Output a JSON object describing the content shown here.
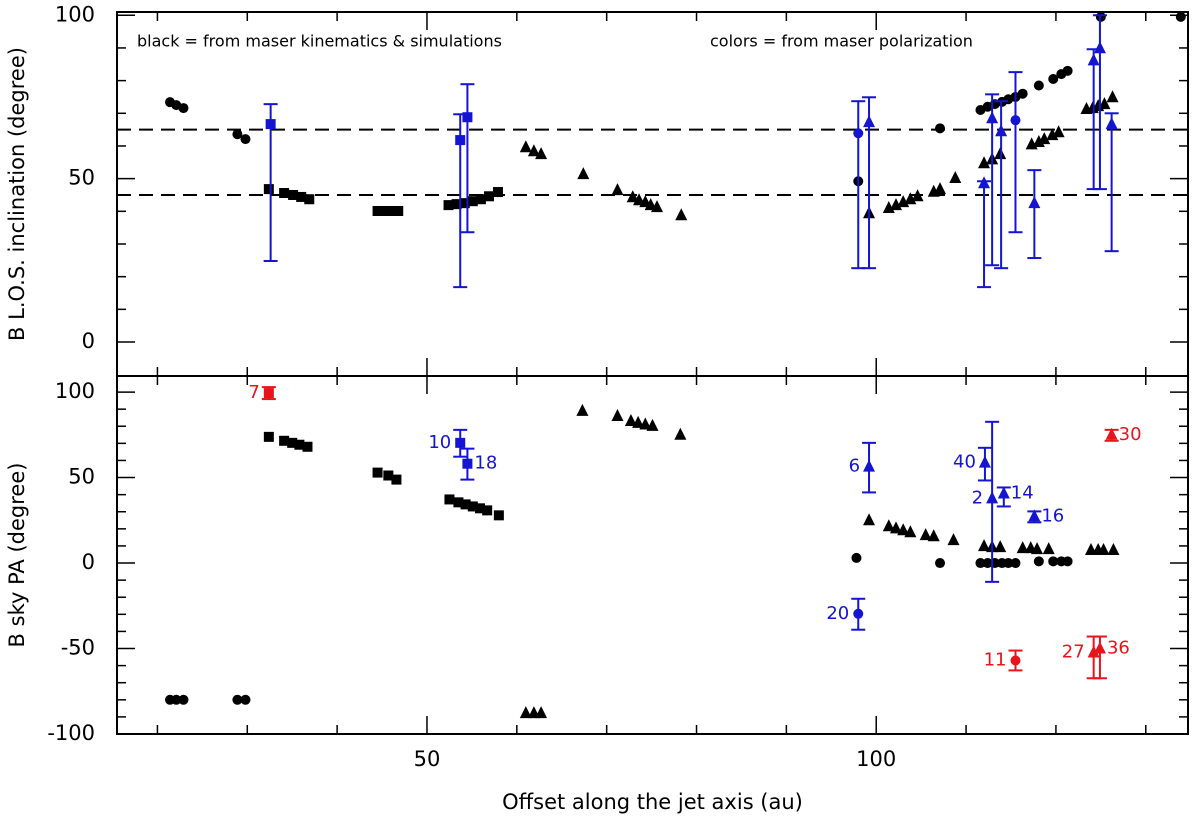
{
  "chart_data": [
    {
      "type": "scatter",
      "ylabel": "B L.O.S. inclination (degree)",
      "annotations": [
        "black = from maser kinematics & simulations",
        "colors = from maser polarization"
      ],
      "xlim": [
        15.5,
        134.7
      ],
      "xticks": [
        50,
        100
      ],
      "xminorticks": [
        20,
        30,
        40,
        60,
        70,
        80,
        90,
        110,
        120,
        130
      ],
      "ylim": [
        -10.4,
        101
      ],
      "yticks": [
        0,
        50,
        100
      ],
      "yminorticks": [
        10,
        20,
        30,
        40,
        60,
        70,
        80,
        90
      ],
      "hlines": [
        45,
        65
      ],
      "series": [
        {
          "marker": "circle",
          "color": "#000000",
          "x": [
            21.4,
            22.1,
            22.9,
            28.9,
            29.8,
            98.0,
            107.1,
            111.6,
            112.4,
            113.2,
            114.0,
            114.7,
            115.5,
            116.3,
            118.1,
            119.7,
            120.6,
            121.3,
            125.0,
            133.9
          ],
          "values": [
            73.4,
            72.5,
            71.6,
            63.6,
            62.1,
            49.2,
            65.4,
            71,
            72,
            72.8,
            73.5,
            74.3,
            75,
            76,
            78.5,
            80.5,
            82,
            83,
            99.5,
            99.5
          ]
        },
        {
          "marker": "square",
          "color": "#000000",
          "x": [
            32.4,
            34.1,
            35.1,
            36.0,
            36.9,
            44.5,
            45.3,
            46.1,
            46.8,
            52.4,
            53.3,
            54.2,
            55.1,
            56.0,
            56.9,
            57.9
          ],
          "values": [
            46.8,
            45.6,
            45,
            44.4,
            43.7,
            40.1,
            40.1,
            40.1,
            40.1,
            41.9,
            42.2,
            42.5,
            43.1,
            43.7,
            44.6,
            45.9
          ]
        },
        {
          "marker": "triangle",
          "color": "#000000",
          "x": [
            61.0,
            61.9,
            62.7,
            67.4,
            71.2,
            72.9,
            73.6,
            74.3,
            74.9,
            75.6,
            78.3,
            99.2,
            101.4,
            102.2,
            103.0,
            103.8,
            104.6,
            106.4,
            107.1,
            108.8,
            112.0,
            112.9,
            113.8,
            117.3,
            118.1,
            118.7,
            119.6,
            120.3,
            123.4,
            124.1,
            124.7,
            125.4,
            126.3
          ],
          "values": [
            59.6,
            58.4,
            57.5,
            51.4,
            46.5,
            44.3,
            43.4,
            42.8,
            41.9,
            41.3,
            38.8,
            39.4,
            41,
            41.9,
            42.8,
            43.7,
            44.6,
            46,
            46.8,
            50.2,
            54.7,
            55.9,
            57.5,
            60.5,
            61.2,
            62.1,
            63.3,
            64.2,
            71.3,
            71.6,
            72.2,
            72.8,
            74.9
          ]
        },
        {
          "marker": "square",
          "color": "#1414d2",
          "x": [
            32.6,
            53.7,
            54.5
          ],
          "values": [
            66.7,
            61.8,
            68.8
          ],
          "upper": [
            72.8,
            69.7,
            78.9
          ],
          "lower": [
            24.8,
            16.8,
            33.6
          ]
        },
        {
          "marker": "circle",
          "color": "#1414d2",
          "x": [
            98.0,
            115.5
          ],
          "values": [
            63.9,
            67.9
          ],
          "upper": [
            73.7,
            82.6
          ],
          "lower": [
            22.6,
            33.6
          ]
        },
        {
          "marker": "triangle",
          "color": "#1414d2",
          "x": [
            99.2,
            112.0,
            112.9,
            113.9,
            117.6,
            124.2,
            124.9,
            126.2
          ],
          "values": [
            67.3,
            48.6,
            68.5,
            64.5,
            42.5,
            86.2,
            89.9,
            66.7
          ],
          "upper": [
            74.9,
            49.2,
            75.8,
            73.7,
            52.6,
            89.6,
            100,
            70
          ],
          "lower": [
            22.6,
            16.8,
            23.5,
            22.6,
            25.7,
            46.8,
            46.8,
            27.8
          ]
        }
      ]
    },
    {
      "type": "scatter",
      "xlabel": "Offset along the jet axis (au)",
      "ylabel": "B sky PA (degree)",
      "xlim": [
        15.5,
        134.7
      ],
      "xticks": [
        50,
        100
      ],
      "xminorticks": [
        20,
        30,
        40,
        60,
        70,
        80,
        90,
        110,
        120,
        130
      ],
      "ylim": [
        -100,
        109.4
      ],
      "yticks": [
        -100,
        -50,
        0,
        50,
        100
      ],
      "yminorticks": [
        -90,
        -80,
        -70,
        -60,
        -40,
        -30,
        -20,
        -10,
        10,
        20,
        30,
        40,
        60,
        70,
        80,
        90
      ],
      "series": [
        {
          "marker": "circle",
          "color": "#000000",
          "x": [
            21.4,
            22.1,
            22.9,
            28.9,
            29.8,
            97.8,
            107.1,
            111.6,
            112.4,
            113.2,
            114.0,
            114.7,
            115.5,
            118.1,
            119.7,
            120.6,
            121.3
          ],
          "values": [
            -80,
            -80,
            -80,
            -80,
            -80,
            3,
            0,
            0,
            0,
            0,
            0,
            0,
            0,
            1,
            1,
            1,
            1
          ]
        },
        {
          "marker": "square",
          "color": "#000000",
          "x": [
            32.4,
            34.1,
            35.0,
            35.8,
            36.7,
            44.5,
            45.7,
            46.6,
            52.5,
            53.5,
            54.3,
            55.1,
            55.9,
            56.7,
            58.0
          ],
          "values": [
            73.8,
            71.5,
            70.3,
            69.2,
            68,
            52.9,
            51.2,
            48.8,
            37.2,
            35.5,
            34.3,
            33.1,
            32,
            30.8,
            27.9
          ]
        },
        {
          "marker": "triangle",
          "color": "#000000",
          "x": [
            61.0,
            61.9,
            62.7,
            67.3,
            71.2,
            72.7,
            73.5,
            74.3,
            75.1,
            78.2,
            99.2,
            101.4,
            102.2,
            103.0,
            103.8,
            105.5,
            106.4,
            108.6,
            112.0,
            112.9,
            113.8,
            116.3,
            117.2,
            117.9,
            119.2,
            123.9,
            124.7,
            125.3,
            126.4
          ],
          "values": [
            -87.8,
            -87.8,
            -87.8,
            89,
            86,
            83.1,
            82,
            81,
            80.2,
            75,
            25,
            21.5,
            20.3,
            19.2,
            18,
            16.3,
            15.7,
            13.4,
            9.9,
            9.3,
            9.3,
            8.7,
            8.7,
            8.1,
            8.1,
            7.6,
            7.6,
            7.6,
            7.6
          ]
        },
        {
          "marker": "square",
          "color": "#e8141b",
          "x": [
            32.4
          ],
          "values": [
            99.4
          ],
          "upper": [
            102.9
          ],
          "lower": [
            95.9
          ],
          "labels": [
            "7"
          ]
        },
        {
          "marker": "square",
          "color": "#1414d2",
          "x": [
            53.7,
            54.5
          ],
          "values": [
            70.3,
            58.1
          ],
          "upper": [
            77.9,
            66.9
          ],
          "lower": [
            62.2,
            48.8
          ],
          "labels": [
            "10",
            "18"
          ]
        },
        {
          "marker": "circle",
          "color": "#1414d2",
          "x": [
            98.0
          ],
          "values": [
            -29.7
          ],
          "upper": [
            -20.9
          ],
          "lower": [
            -39
          ],
          "labels": [
            "20"
          ]
        },
        {
          "marker": "triangle",
          "color": "#1414d2",
          "x": [
            99.2,
            112.1,
            112.9,
            114.2,
            117.6
          ],
          "values": [
            56.4,
            58.7,
            37.8,
            40.7,
            27.3
          ],
          "upper": [
            70.3,
            67.4,
            82.6,
            44.2,
            30.2
          ],
          "lower": [
            41.3,
            48.3,
            -11,
            33.1,
            23.8
          ],
          "labels": [
            "6",
            "40",
            "2",
            "14",
            "16"
          ]
        },
        {
          "marker": "circle",
          "color": "#e8141b",
          "x": [
            115.5
          ],
          "values": [
            -57
          ],
          "upper": [
            -51.2
          ],
          "lower": [
            -62.8
          ],
          "labels": [
            "11"
          ]
        },
        {
          "marker": "triangle",
          "color": "#e8141b",
          "x": [
            126.2,
            124.2,
            124.9
          ],
          "values": [
            75,
            -52.3,
            -50
          ],
          "upper": [
            77.9,
            -43,
            -43
          ],
          "lower": [
            71.5,
            -67.4,
            -67.4
          ],
          "labels": [
            "30",
            "27",
            "36"
          ]
        }
      ]
    }
  ]
}
